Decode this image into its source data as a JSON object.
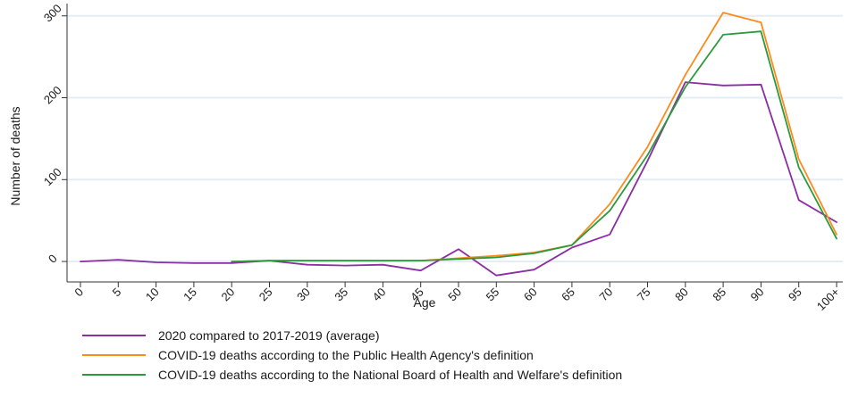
{
  "chart_data": {
    "type": "line",
    "title": "",
    "xlabel": "Age",
    "ylabel": "Number of deaths",
    "categories": [
      "0",
      "5",
      "10",
      "15",
      "20",
      "25",
      "30",
      "35",
      "40",
      "45",
      "50",
      "55",
      "60",
      "65",
      "70",
      "75",
      "80",
      "85",
      "90",
      "95",
      "100+"
    ],
    "ylim": [
      -25,
      315
    ],
    "yticks": [
      0,
      100,
      200,
      300
    ],
    "grid": "horizontal",
    "legend_position": "bottom-left",
    "series": [
      {
        "name": "2020 compared to 2017-2019 (average)",
        "color": "#8b2da3",
        "values": [
          0,
          2,
          -1,
          -2,
          -2,
          1,
          -4,
          -5,
          -4,
          -11,
          15,
          -17,
          -10,
          17,
          33,
          123,
          219,
          215,
          216,
          75,
          48
        ]
      },
      {
        "name": "COVID-19 deaths according to the Public Health Agency's definition",
        "color": "#ff8a1c",
        "values": [
          null,
          null,
          null,
          null,
          0,
          1,
          1,
          1,
          1,
          1,
          4,
          7,
          11,
          20,
          70,
          140,
          228,
          304,
          292,
          125,
          33
        ]
      },
      {
        "name": "COVID-19 deaths according to the National Board of Health and Welfare's definition",
        "color": "#2b9a3a",
        "values": [
          null,
          null,
          null,
          null,
          0,
          1,
          1,
          1,
          1,
          1,
          3,
          5,
          10,
          20,
          62,
          130,
          213,
          277,
          281,
          115,
          28
        ]
      }
    ]
  }
}
